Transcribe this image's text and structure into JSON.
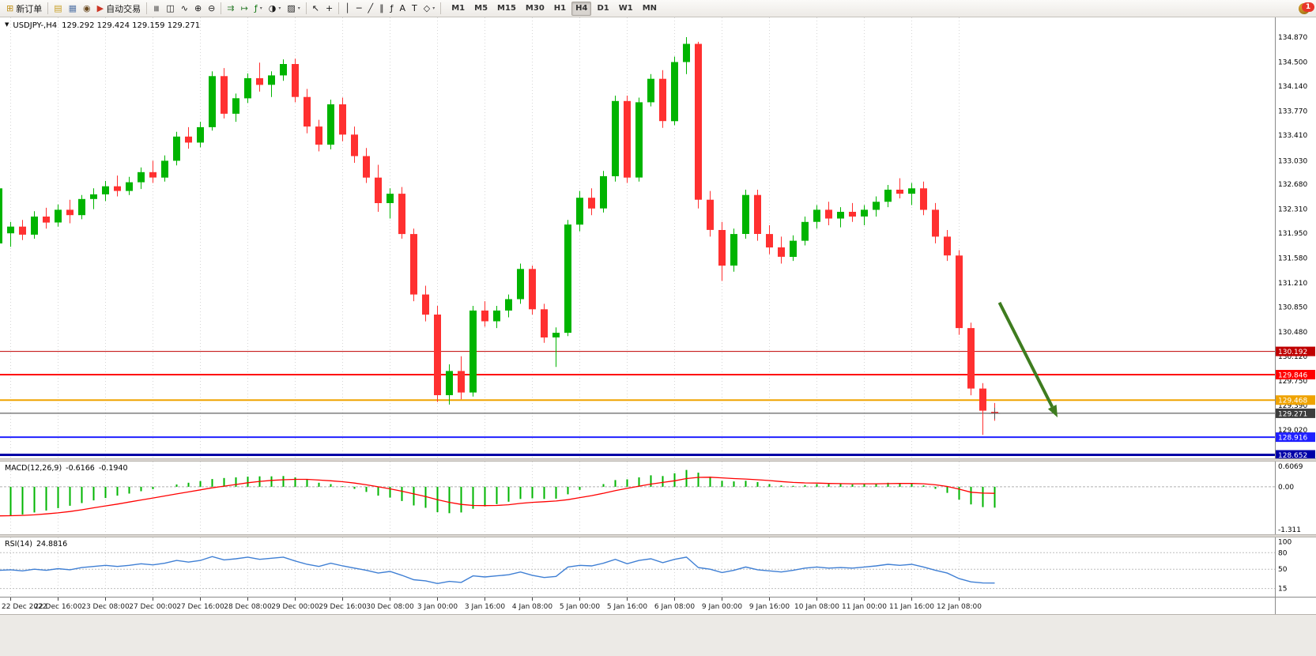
{
  "toolbar": {
    "items": [
      {
        "name": "new-order-button",
        "icon": "⊞",
        "icon_color": "#c09018",
        "label": "新订单"
      },
      {
        "sep": true
      },
      {
        "name": "charts-button",
        "icon": "▤",
        "icon_color": "#c8a028"
      },
      {
        "name": "profiles-button",
        "icon": "▦",
        "icon_color": "#5878a8"
      },
      {
        "name": "market-watch-button",
        "icon": "◉",
        "icon_color": "#6a4a20"
      },
      {
        "name": "autotrading-button",
        "icon": "▶",
        "icon_color": "#cc3424",
        "label": "自动交易"
      },
      {
        "sep": true
      },
      {
        "name": "bar-chart-button",
        "icon": "≡",
        "rot": true
      },
      {
        "name": "candlestick-chart-button",
        "icon": "◫"
      },
      {
        "name": "line-chart-button",
        "icon": "∿"
      },
      {
        "name": "zoom-in-button",
        "icon": "⊕"
      },
      {
        "name": "zoom-out-button",
        "icon": "⊖"
      },
      {
        "sep": true
      },
      {
        "name": "auto-scroll-button",
        "icon": "⇉",
        "icon_color": "#2f7d2f"
      },
      {
        "name": "chart-shift-button",
        "icon": "↦",
        "icon_color": "#2f7d2f"
      },
      {
        "name": "indicators-button",
        "icon": "ƒ",
        "icon_color": "#117711",
        "dropdown": true
      },
      {
        "name": "periods-button",
        "icon": "◑",
        "dropdown": true
      },
      {
        "name": "templates-button",
        "icon": "▨",
        "dropdown": true
      },
      {
        "sep": true
      },
      {
        "name": "cursor-button",
        "icon": "↖"
      },
      {
        "name": "crosshair-button",
        "icon": "+"
      },
      {
        "sep": true
      },
      {
        "name": "vertical-line-button",
        "icon": "│"
      },
      {
        "name": "horizontal-line-button",
        "icon": "─"
      },
      {
        "name": "trendline-button",
        "icon": "╱"
      },
      {
        "name": "channel-button",
        "icon": "∥"
      },
      {
        "name": "fibonacci-button",
        "icon": "ƒ"
      },
      {
        "name": "text-button",
        "icon": "A"
      },
      {
        "name": "label-button",
        "icon": "T"
      },
      {
        "name": "shapes-button",
        "icon": "◇",
        "dropdown": true
      },
      {
        "sep": true
      }
    ],
    "timeframes": [
      "M1",
      "M5",
      "M15",
      "M30",
      "H1",
      "H4",
      "D1",
      "W1",
      "MN"
    ],
    "active_timeframe": "H4",
    "notification_count": "1"
  },
  "chart": {
    "title": "USDJPY-,H4",
    "ohlc_text": "129.292 129.424 129.159 129.271",
    "collapse_glyph": "▼"
  },
  "chart_data": {
    "type": "candlestick",
    "symbol": "USDJPY-",
    "timeframe": "H4",
    "current_bar": {
      "open": 129.292,
      "high": 129.424,
      "low": 129.159,
      "close": 129.271
    },
    "x_axis": {
      "labels": [
        "22 Dec 2022",
        "22 Dec 16:00",
        "23 Dec 08:00",
        "27 Dec 00:00",
        "27 Dec 16:00",
        "28 Dec 08:00",
        "29 Dec 00:00",
        "29 Dec 16:00",
        "30 Dec 08:00",
        "3 Jan 00:00",
        "3 Jan 16:00",
        "4 Jan 08:00",
        "5 Jan 00:00",
        "5 Jan 16:00",
        "6 Jan 08:00",
        "9 Jan 00:00",
        "9 Jan 16:00",
        "10 Jan 08:00",
        "11 Jan 00:00",
        "11 Jan 16:00",
        "12 Jan 08:00"
      ],
      "bars_between_labels": 4,
      "first_label_bar_index": 1
    },
    "y_axis": {
      "ticks": [
        "134.870",
        "134.500",
        "134.140",
        "133.770",
        "133.410",
        "133.030",
        "132.680",
        "132.310",
        "131.950",
        "131.580",
        "131.210",
        "130.850",
        "130.480",
        "130.120",
        "129.750",
        "129.390",
        "129.020"
      ]
    },
    "colors": {
      "up": "#00b400",
      "down": "#ff3030",
      "grid": "#d6d6d6"
    },
    "candles": [
      [
        131.8,
        132.68,
        131.72,
        132.62
      ],
      [
        131.95,
        132.12,
        131.75,
        132.05
      ],
      [
        132.05,
        132.15,
        131.85,
        131.93
      ],
      [
        131.93,
        132.28,
        131.87,
        132.2
      ],
      [
        132.2,
        132.33,
        132.02,
        132.11
      ],
      [
        132.11,
        132.38,
        132.05,
        132.3
      ],
      [
        132.3,
        132.45,
        132.1,
        132.22
      ],
      [
        132.22,
        132.52,
        132.16,
        132.46
      ],
      [
        132.46,
        132.62,
        132.31,
        132.53
      ],
      [
        132.53,
        132.73,
        132.43,
        132.65
      ],
      [
        132.65,
        132.81,
        132.5,
        132.58
      ],
      [
        132.58,
        132.79,
        132.52,
        132.71
      ],
      [
        132.71,
        132.93,
        132.61,
        132.86
      ],
      [
        132.86,
        133.03,
        132.7,
        132.78
      ],
      [
        132.78,
        133.11,
        132.72,
        133.03
      ],
      [
        133.03,
        133.46,
        132.96,
        133.39
      ],
      [
        133.39,
        133.53,
        133.21,
        133.3
      ],
      [
        133.3,
        133.61,
        133.23,
        133.53
      ],
      [
        133.53,
        134.36,
        133.48,
        134.29
      ],
      [
        134.29,
        134.41,
        133.66,
        133.73
      ],
      [
        133.73,
        134.03,
        133.61,
        133.96
      ],
      [
        133.96,
        134.33,
        133.89,
        134.26
      ],
      [
        134.26,
        134.49,
        134.06,
        134.16
      ],
      [
        134.16,
        134.36,
        133.98,
        134.3
      ],
      [
        134.3,
        134.54,
        134.22,
        134.47
      ],
      [
        134.47,
        134.55,
        133.9,
        133.98
      ],
      [
        133.98,
        134.1,
        133.44,
        133.54
      ],
      [
        133.54,
        133.64,
        133.17,
        133.27
      ],
      [
        133.27,
        133.94,
        133.2,
        133.87
      ],
      [
        133.87,
        133.97,
        133.32,
        133.42
      ],
      [
        133.42,
        133.54,
        133.0,
        133.1
      ],
      [
        133.1,
        133.22,
        132.7,
        132.78
      ],
      [
        132.78,
        132.97,
        132.27,
        132.4
      ],
      [
        132.4,
        132.62,
        132.17,
        132.54
      ],
      [
        132.54,
        132.64,
        131.87,
        131.94
      ],
      [
        131.94,
        132.02,
        130.94,
        131.04
      ],
      [
        131.04,
        131.17,
        130.64,
        130.74
      ],
      [
        130.74,
        130.87,
        129.44,
        129.54
      ],
      [
        129.54,
        130.0,
        129.4,
        129.9
      ],
      [
        129.9,
        130.12,
        129.48,
        129.58
      ],
      [
        129.58,
        130.87,
        129.52,
        130.8
      ],
      [
        130.8,
        130.94,
        130.56,
        130.64
      ],
      [
        130.64,
        130.87,
        130.54,
        130.8
      ],
      [
        130.8,
        131.04,
        130.7,
        130.97
      ],
      [
        130.97,
        131.5,
        130.9,
        131.42
      ],
      [
        131.42,
        131.47,
        130.74,
        130.82
      ],
      [
        130.82,
        130.9,
        130.32,
        130.4
      ],
      [
        130.4,
        130.55,
        129.96,
        130.47
      ],
      [
        130.47,
        132.15,
        130.42,
        132.08
      ],
      [
        132.08,
        132.58,
        131.98,
        132.48
      ],
      [
        132.48,
        132.62,
        132.22,
        132.32
      ],
      [
        132.32,
        132.88,
        132.26,
        132.8
      ],
      [
        132.8,
        134.0,
        132.72,
        133.92
      ],
      [
        133.92,
        134.0,
        132.7,
        132.78
      ],
      [
        132.78,
        133.97,
        132.72,
        133.9
      ],
      [
        133.9,
        134.32,
        133.84,
        134.25
      ],
      [
        134.25,
        134.38,
        133.52,
        133.62
      ],
      [
        133.62,
        134.58,
        133.56,
        134.5
      ],
      [
        134.5,
        134.87,
        134.32,
        134.77
      ],
      [
        134.77,
        134.8,
        132.32,
        132.45
      ],
      [
        132.45,
        132.58,
        131.9,
        132.0
      ],
      [
        132.0,
        132.12,
        131.24,
        131.47
      ],
      [
        131.47,
        132.02,
        131.38,
        131.94
      ],
      [
        131.94,
        132.6,
        131.87,
        132.52
      ],
      [
        132.52,
        132.6,
        131.84,
        131.94
      ],
      [
        131.94,
        132.07,
        131.64,
        131.74
      ],
      [
        131.74,
        131.9,
        131.5,
        131.6
      ],
      [
        131.6,
        131.92,
        131.54,
        131.84
      ],
      [
        131.84,
        132.2,
        131.77,
        132.12
      ],
      [
        132.12,
        132.37,
        132.02,
        132.3
      ],
      [
        132.3,
        132.42,
        132.07,
        132.17
      ],
      [
        132.17,
        132.34,
        132.04,
        132.27
      ],
      [
        132.27,
        132.4,
        132.12,
        132.2
      ],
      [
        132.2,
        132.37,
        132.07,
        132.3
      ],
      [
        132.3,
        132.5,
        132.2,
        132.42
      ],
      [
        132.42,
        132.67,
        132.34,
        132.6
      ],
      [
        132.6,
        132.77,
        132.47,
        132.54
      ],
      [
        132.54,
        132.7,
        132.37,
        132.62
      ],
      [
        132.62,
        132.72,
        132.22,
        132.3
      ],
      [
        132.3,
        132.4,
        131.8,
        131.9
      ],
      [
        131.9,
        132.0,
        131.54,
        131.62
      ],
      [
        131.62,
        131.7,
        130.44,
        130.54
      ],
      [
        130.54,
        130.62,
        129.54,
        129.64
      ],
      [
        129.64,
        129.72,
        128.95,
        129.31
      ],
      [
        129.292,
        129.424,
        129.159,
        129.271
      ]
    ],
    "levels": [
      {
        "price": 130.192,
        "label": "130.192",
        "color": "#c00000",
        "width": 1
      },
      {
        "price": 129.846,
        "label": "129.846",
        "color": "#ff0000",
        "width": 2
      },
      {
        "price": 129.468,
        "label": "129.468",
        "color": "#efa300",
        "width": 2
      },
      {
        "price": 129.271,
        "label": "129.271",
        "color": "#3d3d3d",
        "width": 1,
        "current": true
      },
      {
        "price": 128.916,
        "label": "128.916",
        "color": "#2020ff",
        "width": 2
      },
      {
        "price": 128.652,
        "label": "128.652",
        "color": "#0000a8",
        "width": 3
      }
    ],
    "trend_arrow": {
      "from": {
        "bar": 84.4,
        "price": 130.92
      },
      "to": {
        "bar": 89.3,
        "price": 129.21
      },
      "color": "#3e7c1f"
    },
    "indicators": {
      "macd": {
        "label": "MACD(12,26,9)",
        "value_main": "-0.6166",
        "value_signal": "-0.1940",
        "axis_ticks": [
          "0.6069",
          "0.00",
          "-1.311"
        ],
        "max": 0.6069,
        "min": -1.311,
        "colors": {
          "histogram": "#00b400",
          "signal": "#ff0000"
        },
        "histogram": [
          -0.88,
          -0.85,
          -0.82,
          -0.76,
          -0.7,
          -0.63,
          -0.56,
          -0.48,
          -0.4,
          -0.33,
          -0.26,
          -0.2,
          -0.13,
          -0.07,
          0.0,
          0.07,
          0.12,
          0.17,
          0.23,
          0.26,
          0.28,
          0.3,
          0.31,
          0.31,
          0.32,
          0.28,
          0.21,
          0.12,
          0.08,
          0.02,
          -0.06,
          -0.15,
          -0.26,
          -0.32,
          -0.42,
          -0.55,
          -0.62,
          -0.75,
          -0.78,
          -0.76,
          -0.65,
          -0.58,
          -0.51,
          -0.44,
          -0.36,
          -0.34,
          -0.36,
          -0.35,
          -0.22,
          -0.09,
          0.0,
          0.08,
          0.2,
          0.22,
          0.28,
          0.34,
          0.32,
          0.4,
          0.5,
          0.42,
          0.3,
          0.18,
          0.16,
          0.18,
          0.14,
          0.08,
          0.04,
          0.03,
          0.05,
          0.08,
          0.08,
          0.08,
          0.07,
          0.08,
          0.1,
          0.12,
          0.11,
          0.1,
          0.04,
          -0.06,
          -0.18,
          -0.38,
          -0.52,
          -0.6,
          -0.6166
        ],
        "signal": [
          -0.86,
          -0.855,
          -0.845,
          -0.83,
          -0.8,
          -0.77,
          -0.73,
          -0.68,
          -0.62,
          -0.565,
          -0.51,
          -0.45,
          -0.39,
          -0.33,
          -0.27,
          -0.21,
          -0.15,
          -0.09,
          -0.03,
          0.02,
          0.07,
          0.12,
          0.16,
          0.19,
          0.21,
          0.22,
          0.22,
          0.2,
          0.18,
          0.15,
          0.11,
          0.06,
          0.0,
          -0.06,
          -0.13,
          -0.21,
          -0.29,
          -0.38,
          -0.46,
          -0.52,
          -0.55,
          -0.555,
          -0.55,
          -0.53,
          -0.49,
          -0.46,
          -0.44,
          -0.42,
          -0.38,
          -0.32,
          -0.26,
          -0.19,
          -0.11,
          -0.045,
          0.02,
          0.08,
          0.13,
          0.18,
          0.245,
          0.28,
          0.285,
          0.265,
          0.245,
          0.23,
          0.21,
          0.185,
          0.155,
          0.13,
          0.115,
          0.11,
          0.1,
          0.095,
          0.09,
          0.09,
          0.09,
          0.095,
          0.1,
          0.1,
          0.09,
          0.06,
          0.01,
          -0.07,
          -0.16,
          -0.185,
          -0.194
        ]
      },
      "rsi": {
        "label": "RSI(14)",
        "value": "24.8816",
        "axis_ticks": [
          "100",
          "80",
          "50",
          "15"
        ],
        "levels": [
          80,
          50,
          15
        ],
        "max": 102,
        "min": 13,
        "color": "#3f7fd4",
        "values": [
          48,
          49,
          47,
          50,
          48,
          51,
          49,
          53,
          55,
          57,
          55,
          57,
          60,
          58,
          61,
          66,
          63,
          66,
          73,
          67,
          69,
          72,
          68,
          70,
          72,
          65,
          59,
          55,
          61,
          56,
          52,
          48,
          43,
          46,
          39,
          31,
          29,
          24,
          28,
          26,
          38,
          36,
          38,
          40,
          45,
          39,
          35,
          37,
          54,
          57,
          56,
          61,
          68,
          60,
          66,
          69,
          62,
          68,
          72,
          53,
          50,
          44,
          48,
          54,
          49,
          47,
          45,
          48,
          52,
          54,
          52,
          53,
          52,
          54,
          56,
          59,
          57,
          59,
          54,
          48,
          43,
          33,
          27,
          25,
          24.88
        ]
      }
    }
  }
}
